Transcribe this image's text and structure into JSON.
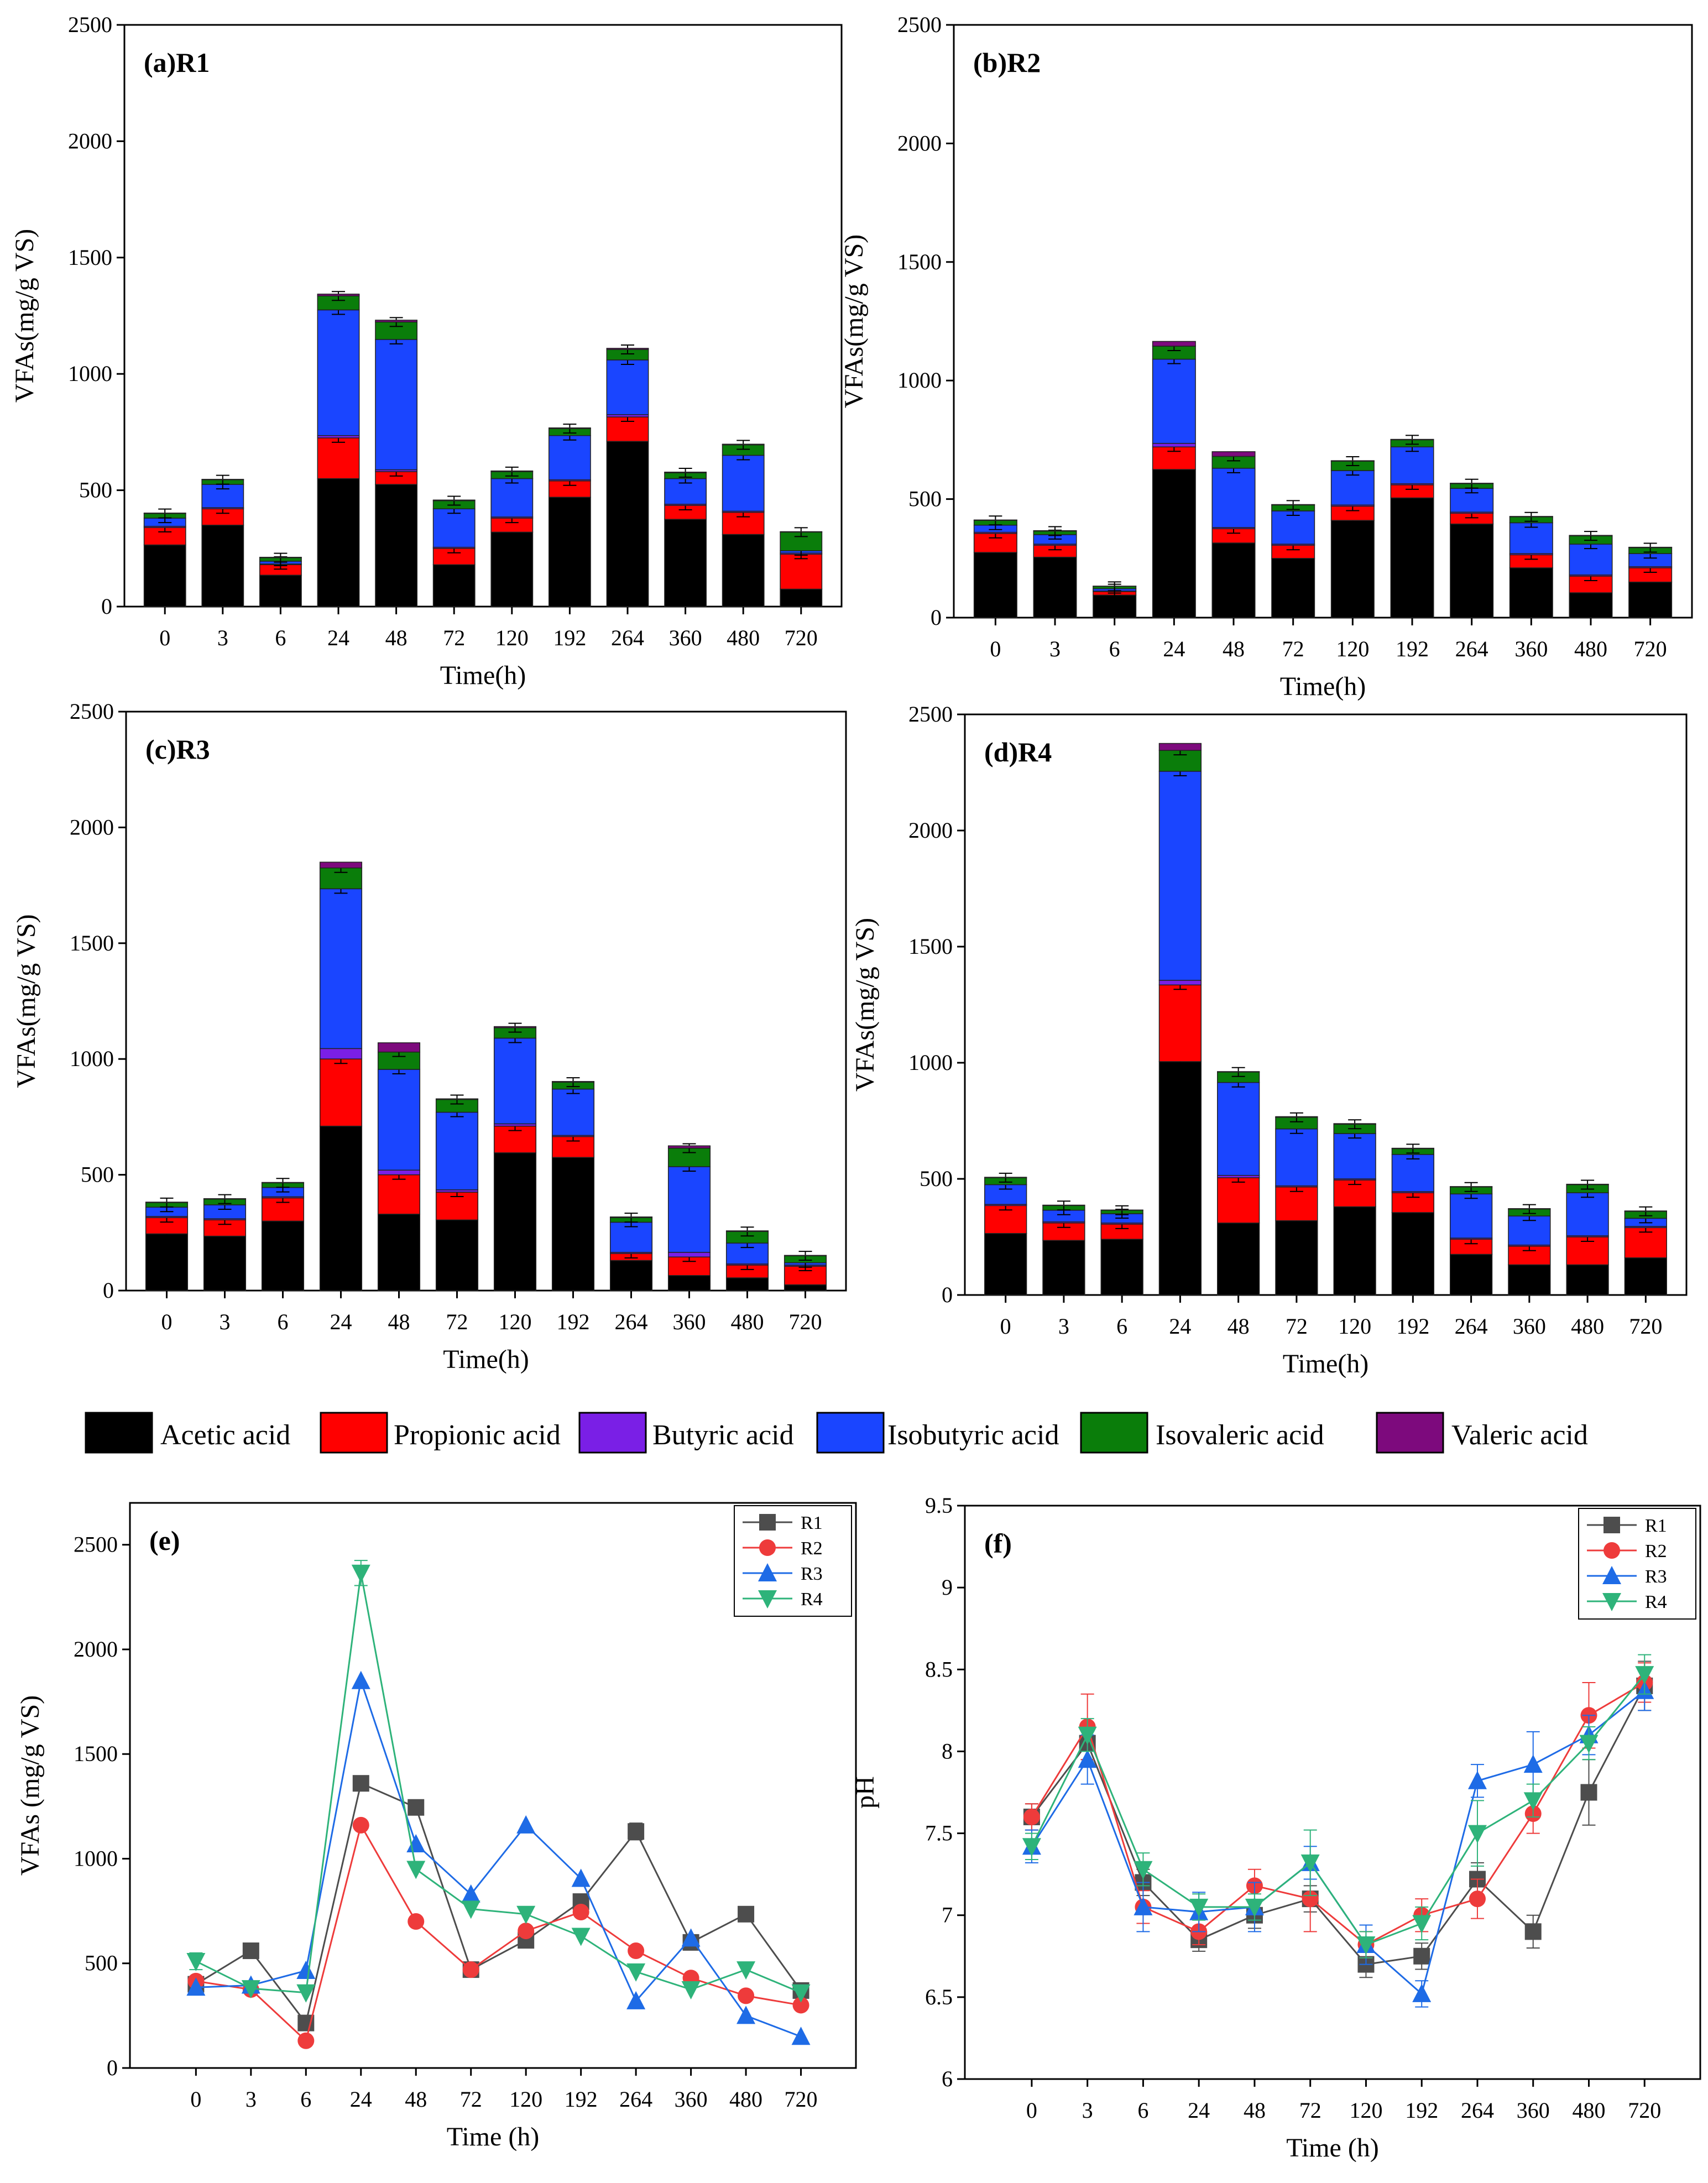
{
  "colors": {
    "acetic": "#000000",
    "propionic": "#ff0000",
    "butyric": "#7a1fe6",
    "isobutyric": "#1a45ff",
    "isovaleric": "#0a7d0a",
    "valeric": "#7d0a7d",
    "R1": "#4d4d4d",
    "R2": "#ee3b3b",
    "R3": "#1e6be6",
    "R4": "#2eb37a"
  },
  "legend": {
    "acids": [
      "Acetic acid",
      "Propionic acid",
      "Butyric acid",
      "Isobutyric acid",
      "Isovaleric acid",
      "Valeric acid"
    ]
  },
  "chart_data": [
    {
      "id": "a",
      "type": "bar",
      "stacked": true,
      "tag": "(a)R1",
      "xlabel": "Time(h)",
      "ylabel": "VFAs(mg/g VS)",
      "ylim": [
        0,
        2500
      ],
      "yticks": [
        0,
        500,
        1000,
        1500,
        2000,
        2500
      ],
      "categories": [
        "0",
        "3",
        "6",
        "24",
        "48",
        "72",
        "120",
        "192",
        "264",
        "360",
        "480",
        "720"
      ],
      "series": [
        {
          "name": "Acetic acid",
          "values": [
            265,
            350,
            135,
            550,
            525,
            180,
            320,
            470,
            710,
            375,
            310,
            75
          ]
        },
        {
          "name": "Propionic acid",
          "values": [
            75,
            70,
            45,
            175,
            55,
            70,
            60,
            70,
            105,
            60,
            95,
            150
          ]
        },
        {
          "name": "Butyric acid",
          "values": [
            5,
            5,
            3,
            10,
            8,
            5,
            5,
            5,
            10,
            5,
            5,
            5
          ]
        },
        {
          "name": "Isobutyric acid",
          "values": [
            35,
            100,
            12,
            540,
            560,
            165,
            165,
            190,
            235,
            110,
            240,
            10
          ]
        },
        {
          "name": "Isovaleric acid",
          "values": [
            20,
            20,
            15,
            60,
            75,
            35,
            30,
            30,
            45,
            25,
            45,
            80
          ]
        },
        {
          "name": "Valeric acid",
          "values": [
            2,
            2,
            2,
            8,
            8,
            3,
            3,
            3,
            5,
            3,
            3,
            2
          ]
        }
      ]
    },
    {
      "id": "b",
      "type": "bar",
      "stacked": true,
      "tag": "(b)R2",
      "xlabel": "Time(h)",
      "ylabel": "VFAs(mg/g VS)",
      "ylim": [
        0,
        2500
      ],
      "yticks": [
        0,
        500,
        1000,
        1500,
        2000,
        2500
      ],
      "categories": [
        "0",
        "3",
        "6",
        "24",
        "48",
        "72",
        "120",
        "192",
        "264",
        "360",
        "480",
        "720"
      ],
      "series": [
        {
          "name": "Acetic acid",
          "values": [
            275,
            255,
            95,
            625,
            315,
            250,
            410,
            505,
            395,
            210,
            105,
            150
          ]
        },
        {
          "name": "Propionic acid",
          "values": [
            80,
            50,
            15,
            95,
            60,
            55,
            60,
            55,
            45,
            55,
            70,
            60
          ]
        },
        {
          "name": "Butyric acid",
          "values": [
            5,
            5,
            2,
            15,
            5,
            5,
            5,
            5,
            5,
            5,
            5,
            5
          ]
        },
        {
          "name": "Isobutyric acid",
          "values": [
            30,
            40,
            10,
            355,
            250,
            140,
            145,
            155,
            100,
            130,
            130,
            55
          ]
        },
        {
          "name": "Isovaleric acid",
          "values": [
            20,
            15,
            10,
            55,
            50,
            25,
            40,
            30,
            20,
            25,
            35,
            25
          ]
        },
        {
          "name": "Valeric acid",
          "values": [
            2,
            2,
            1,
            20,
            20,
            2,
            2,
            2,
            2,
            2,
            2,
            2
          ]
        }
      ]
    },
    {
      "id": "c",
      "type": "bar",
      "stacked": true,
      "tag": "(c)R3",
      "xlabel": "Time(h)",
      "ylabel": "VFAs(mg/g VS)",
      "ylim": [
        0,
        2500
      ],
      "yticks": [
        0,
        500,
        1000,
        1500,
        2000,
        2500
      ],
      "categories": [
        "0",
        "3",
        "6",
        "24",
        "48",
        "72",
        "120",
        "192",
        "264",
        "360",
        "480",
        "720"
      ],
      "series": [
        {
          "name": "Acetic acid",
          "values": [
            245,
            235,
            300,
            710,
            330,
            305,
            595,
            575,
            130,
            65,
            55,
            25
          ]
        },
        {
          "name": "Propionic acid",
          "values": [
            70,
            70,
            100,
            290,
            170,
            120,
            115,
            90,
            30,
            80,
            55,
            80
          ]
        },
        {
          "name": "Butyric acid",
          "values": [
            5,
            5,
            5,
            45,
            20,
            10,
            10,
            5,
            5,
            20,
            5,
            5
          ]
        },
        {
          "name": "Isobutyric acid",
          "values": [
            40,
            60,
            40,
            690,
            435,
            335,
            370,
            200,
            130,
            370,
            90,
            10
          ]
        },
        {
          "name": "Isovaleric acid",
          "values": [
            20,
            25,
            20,
            90,
            75,
            55,
            45,
            30,
            20,
            80,
            50,
            30
          ]
        },
        {
          "name": "Valeric acid",
          "values": [
            2,
            2,
            2,
            25,
            40,
            3,
            5,
            3,
            3,
            10,
            3,
            2
          ]
        }
      ]
    },
    {
      "id": "d",
      "type": "bar",
      "stacked": true,
      "tag": "(d)R4",
      "xlabel": "Time(h)",
      "ylabel": "VFAs(mg/g VS)",
      "ylim": [
        0,
        2500
      ],
      "yticks": [
        0,
        500,
        1000,
        1500,
        2000,
        2500
      ],
      "categories": [
        "0",
        "3",
        "6",
        "24",
        "48",
        "72",
        "120",
        "192",
        "264",
        "360",
        "480",
        "720"
      ],
      "series": [
        {
          "name": "Acetic acid",
          "values": [
            265,
            235,
            240,
            1005,
            310,
            320,
            380,
            355,
            175,
            130,
            130,
            160
          ]
        },
        {
          "name": "Propionic acid",
          "values": [
            120,
            75,
            65,
            330,
            195,
            145,
            115,
            85,
            65,
            80,
            120,
            130
          ]
        },
        {
          "name": "Butyric acid",
          "values": [
            5,
            5,
            5,
            20,
            10,
            5,
            5,
            5,
            5,
            5,
            5,
            5
          ]
        },
        {
          "name": "Isobutyric acid",
          "values": [
            85,
            50,
            40,
            900,
            400,
            245,
            195,
            160,
            190,
            125,
            185,
            35
          ]
        },
        {
          "name": "Isovaleric acid",
          "values": [
            30,
            20,
            15,
            90,
            45,
            50,
            40,
            25,
            30,
            30,
            35,
            30
          ]
        },
        {
          "name": "Valeric acid",
          "values": [
            2,
            2,
            1,
            30,
            2,
            3,
            3,
            2,
            2,
            2,
            2,
            2
          ]
        }
      ]
    },
    {
      "id": "e",
      "type": "line",
      "tag": "(e)",
      "xlabel": "Time (h)",
      "ylabel": "VFAs (mg/g VS)",
      "ylim": [
        0,
        2700
      ],
      "yticks": [
        0,
        500,
        1000,
        1500,
        2000,
        2500
      ],
      "categories": [
        "0",
        "3",
        "6",
        "24",
        "48",
        "72",
        "120",
        "192",
        "264",
        "360",
        "480",
        "720"
      ],
      "legend_position": "top-right",
      "series": [
        {
          "name": "R1",
          "marker": "square",
          "values": [
            400,
            560,
            215,
            1360,
            1245,
            470,
            610,
            795,
            1130,
            600,
            735,
            370
          ],
          "errors": [
            0,
            0,
            0,
            20,
            0,
            0,
            0,
            0,
            40,
            0,
            0,
            0
          ]
        },
        {
          "name": "R2",
          "marker": "circle",
          "values": [
            415,
            375,
            130,
            1160,
            700,
            470,
            655,
            745,
            560,
            430,
            345,
            300
          ],
          "errors": [
            0,
            0,
            0,
            0,
            0,
            0,
            0,
            0,
            0,
            0,
            0,
            0
          ]
        },
        {
          "name": "R3",
          "marker": "triangle-up",
          "values": [
            385,
            395,
            465,
            1850,
            1070,
            830,
            1160,
            905,
            320,
            620,
            250,
            150
          ],
          "errors": [
            0,
            0,
            0,
            0,
            0,
            0,
            0,
            0,
            0,
            0,
            0,
            0
          ]
        },
        {
          "name": "R4",
          "marker": "triangle-down",
          "values": [
            510,
            380,
            360,
            2365,
            950,
            760,
            735,
            630,
            460,
            375,
            470,
            360
          ],
          "errors": [
            40,
            0,
            0,
            60,
            0,
            0,
            0,
            0,
            0,
            0,
            0,
            0
          ]
        }
      ]
    },
    {
      "id": "f",
      "type": "line",
      "tag": "(f)",
      "xlabel": "Time (h)",
      "ylabel": "pH",
      "ylim": [
        6,
        9.5
      ],
      "yticks": [
        6,
        6.5,
        7,
        7.5,
        8,
        8.5,
        9,
        9.5
      ],
      "categories": [
        "0",
        "3",
        "6",
        "24",
        "48",
        "72",
        "120",
        "192",
        "264",
        "360",
        "480",
        "720"
      ],
      "legend_position": "top-right",
      "series": [
        {
          "name": "R1",
          "marker": "square",
          "values": [
            7.6,
            8.05,
            7.2,
            6.85,
            7.0,
            7.1,
            6.7,
            6.75,
            7.22,
            6.9,
            7.75,
            8.4
          ],
          "errors": [
            0.08,
            0.1,
            0.08,
            0.07,
            0.08,
            0.08,
            0.08,
            0.08,
            0.1,
            0.1,
            0.2,
            0.15
          ]
        },
        {
          "name": "R2",
          "marker": "circle",
          "values": [
            7.6,
            8.15,
            7.05,
            6.9,
            7.18,
            7.1,
            6.82,
            7.0,
            7.1,
            7.62,
            8.22,
            8.42
          ],
          "errors": [
            0.08,
            0.2,
            0.1,
            0.08,
            0.1,
            0.2,
            0.08,
            0.1,
            0.12,
            0.12,
            0.2,
            0.12
          ]
        },
        {
          "name": "R3",
          "marker": "triangle-up",
          "values": [
            7.42,
            7.95,
            7.05,
            7.02,
            7.05,
            7.32,
            6.82,
            6.52,
            7.82,
            7.92,
            8.1,
            8.37
          ],
          "errors": [
            0.1,
            0.15,
            0.15,
            0.12,
            0.15,
            0.1,
            0.12,
            0.08,
            0.1,
            0.2,
            0.12,
            0.12
          ]
        },
        {
          "name": "R4",
          "marker": "triangle-down",
          "values": [
            7.42,
            8.1,
            7.28,
            7.05,
            7.05,
            7.32,
            6.82,
            6.95,
            7.5,
            7.7,
            8.05,
            8.47
          ],
          "errors": [
            0.08,
            0.1,
            0.1,
            0.08,
            0.08,
            0.2,
            0.08,
            0.1,
            0.2,
            0.1,
            0.1,
            0.12
          ]
        }
      ]
    }
  ]
}
